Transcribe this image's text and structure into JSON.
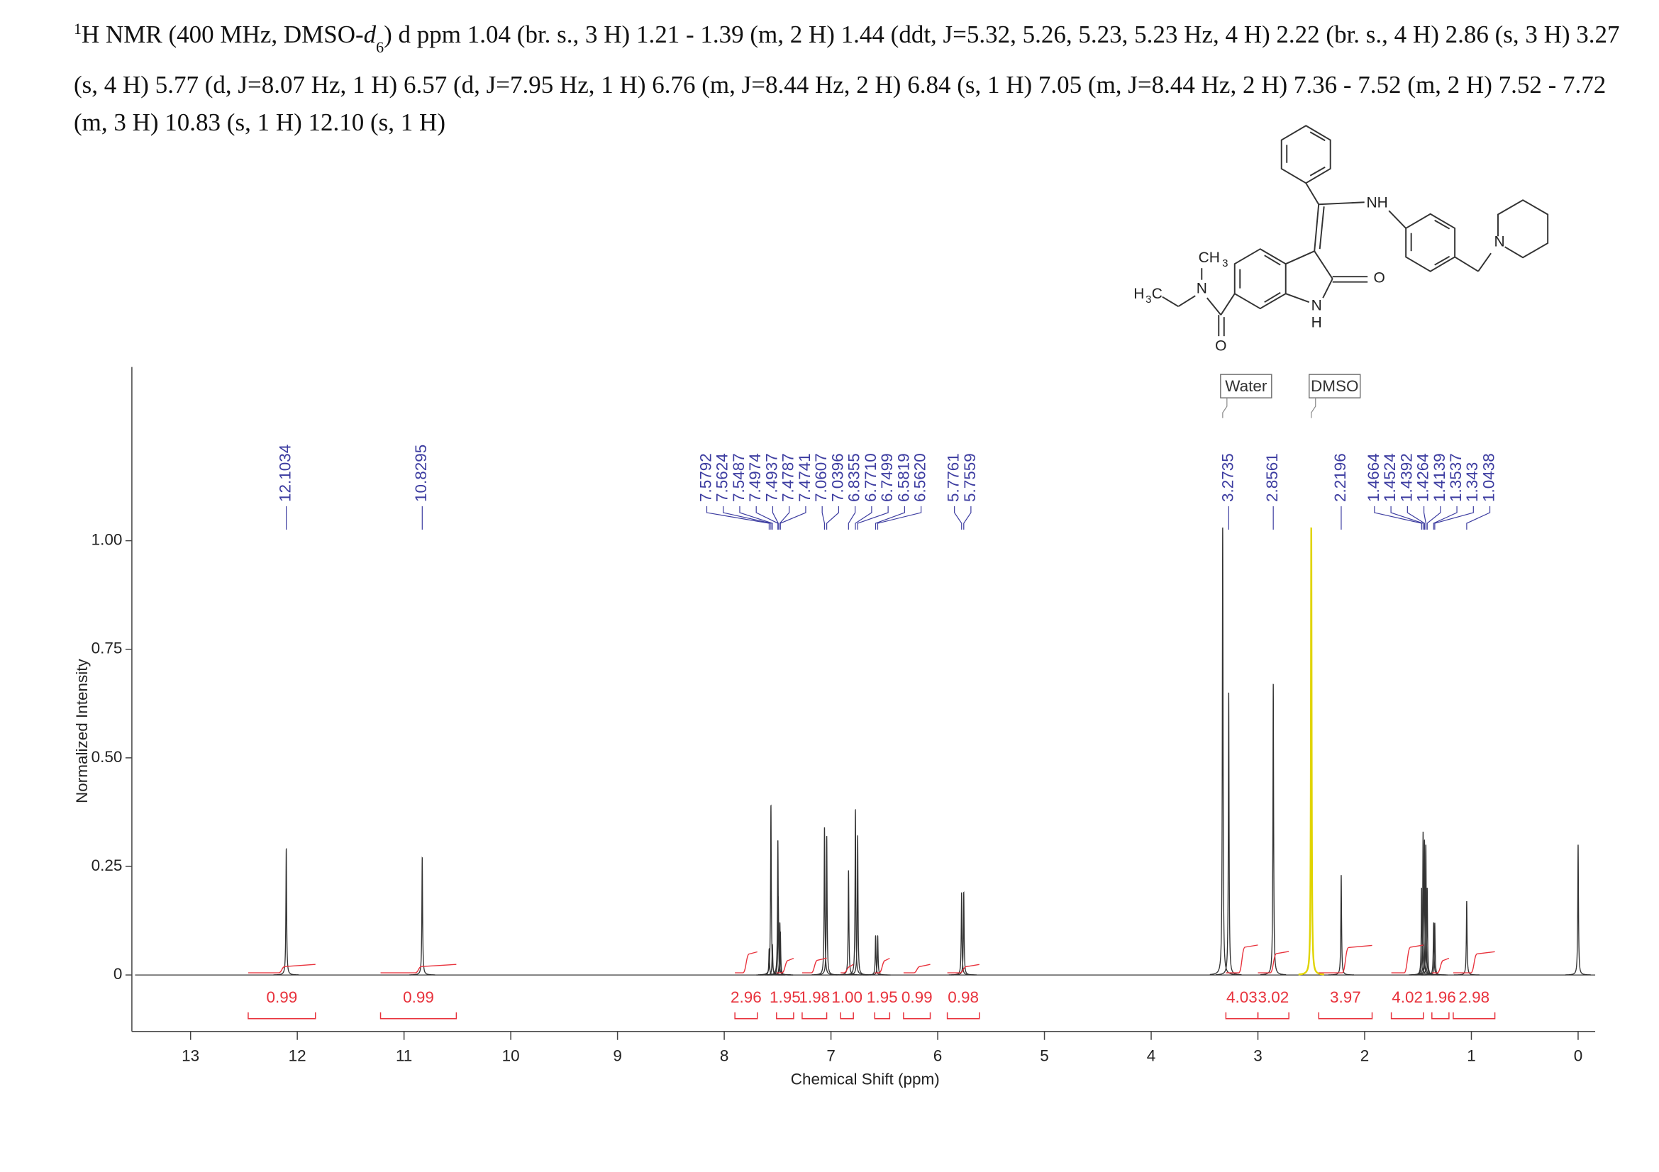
{
  "header": {
    "segments": [
      "1",
      "H NMR (400 MHz, DMSO-",
      "d",
      "6",
      ") d ppm 1.04 (br. s., 3 H) 1.21 - 1.39 (m, 2 H) 1.44 (ddt, J=5.32, 5.26, 5.23, 5.23 Hz, 4 H) 2.22 (br. s., 4 H) 2.86 (s, 3 H) 3.27 (s, 4 H) 5.77 (d, J=8.07 Hz, 1 H) 6.57 (d, J=7.95 Hz, 1 H) 6.76 (m, J=8.44 Hz, 2 H) 6.84 (s, 1 H) 7.05 (m, J=8.44 Hz, 2 H) 7.36 - 7.52 (m, 2 H) 7.52 - 7.72 (m, 3 H) 10.83 (s, 1 H) 12.10 (s, 1 H)"
    ]
  },
  "chart_data": {
    "type": "nmr",
    "xlabel": "Chemical Shift (ppm)",
    "ylabel": "Normalized Intensity",
    "xlim": [
      13.52,
      -0.16
    ],
    "xticks": [
      13,
      12,
      11,
      10,
      9,
      8,
      7,
      6,
      5,
      4,
      3,
      2,
      1,
      0
    ],
    "ylim": [
      -0.13,
      1.4
    ],
    "yticks": [
      0,
      0.25,
      {
        "value": 0.5,
        "label": "0.50"
      },
      0.75,
      {
        "value": 1,
        "label": "1.00"
      }
    ],
    "peak_labels": [
      12.1034,
      10.8295,
      7.5792,
      7.5624,
      7.5487,
      7.4974,
      7.4937,
      7.4787,
      7.4741,
      7.0607,
      7.0396,
      6.8355,
      {
        "value": 6.771,
        "label": "6.7710"
      },
      6.7499,
      6.5819,
      {
        "value": 6.562,
        "label": "6.5620"
      },
      5.7761,
      5.7559,
      3.2735,
      2.8561,
      2.2196,
      1.4664,
      1.4524,
      1.4392,
      1.4264,
      1.4139,
      1.3537,
      1.343,
      1.0438
    ],
    "peak_label_color": "#3c3ca0",
    "spectrum_color": "#333333",
    "peaks": [
      {
        "ppm": 12.1034,
        "height": 0.29
      },
      {
        "ppm": 10.8295,
        "height": 0.27
      },
      {
        "ppm": 7.5792,
        "height": 0.06
      },
      {
        "ppm": 7.5624,
        "height": 0.39
      },
      {
        "ppm": 7.5487,
        "height": 0.07
      },
      {
        "ppm": 7.4974,
        "height": 0.31
      },
      {
        "ppm": 7.4937,
        "height": 0.18
      },
      {
        "ppm": 7.4787,
        "height": 0.12
      },
      {
        "ppm": 7.4741,
        "height": 0.1
      },
      {
        "ppm": 7.0607,
        "height": 0.34
      },
      {
        "ppm": 7.0396,
        "height": 0.32
      },
      {
        "ppm": 6.8355,
        "height": 0.24
      },
      {
        "ppm": 6.771,
        "height": 0.38
      },
      {
        "ppm": 6.7499,
        "height": 0.32
      },
      {
        "ppm": 6.5819,
        "height": 0.09
      },
      {
        "ppm": 6.562,
        "height": 0.09
      },
      {
        "ppm": 5.7761,
        "height": 0.19
      },
      {
        "ppm": 5.7559,
        "height": 0.19
      },
      {
        "ppm": 3.33,
        "height": 1.03
      },
      {
        "ppm": 3.2735,
        "height": 0.65
      },
      {
        "ppm": 2.8561,
        "height": 0.67
      },
      {
        "ppm": 2.5,
        "height": 1.03,
        "color": "#e0d400"
      },
      {
        "ppm": 2.2196,
        "height": 0.23
      },
      {
        "ppm": 1.4664,
        "height": 0.2
      },
      {
        "ppm": 1.4524,
        "height": 0.33
      },
      {
        "ppm": 1.4392,
        "height": 0.31
      },
      {
        "ppm": 1.4264,
        "height": 0.3
      },
      {
        "ppm": 1.4139,
        "height": 0.2
      },
      {
        "ppm": 1.3537,
        "height": 0.12
      },
      {
        "ppm": 1.343,
        "height": 0.12
      },
      {
        "ppm": 1.0438,
        "height": 0.17
      },
      {
        "ppm": 0,
        "height": 0.3
      }
    ],
    "integral_color": "#e8323c",
    "integrals": [
      {
        "range": [
          12.46,
          11.83
        ],
        "value": 0.99
      },
      {
        "range": [
          11.22,
          10.51
        ],
        "value": 0.99
      },
      {
        "range": [
          7.9,
          7.69
        ],
        "value": 2.96
      },
      {
        "range": [
          7.51,
          7.35
        ],
        "value": 1.95
      },
      {
        "range": [
          7.27,
          7.04
        ],
        "value": 1.98
      },
      {
        "range": [
          6.91,
          6.79
        ],
        "value": 1,
        "label": "1.00"
      },
      {
        "range": [
          6.59,
          6.45
        ],
        "value": 1.95
      },
      {
        "range": [
          6.32,
          6.07
        ],
        "value": 0.99
      },
      {
        "range": [
          5.91,
          5.61
        ],
        "value": 0.98
      },
      {
        "range": [
          3.3,
          3.0
        ],
        "value": 4.03
      },
      {
        "range": [
          3.0,
          2.71
        ],
        "value": 3.02
      },
      {
        "range": [
          2.43,
          1.93
        ],
        "value": 3.97
      },
      {
        "range": [
          1.75,
          1.45
        ],
        "value": 4.02
      },
      {
        "range": [
          1.37,
          1.21
        ],
        "value": 1.96
      },
      {
        "range": [
          1.17,
          0.78
        ],
        "value": 2.98
      }
    ],
    "annotations": [
      {
        "text": "Water",
        "ppm": 3.33
      },
      {
        "text": "DMSO",
        "ppm": 2.5
      }
    ]
  },
  "structure": {
    "labels": [
      "NH",
      "N",
      "CH",
      "3",
      "H",
      "3",
      "C",
      "N",
      "O",
      "N",
      "H",
      "O"
    ]
  }
}
